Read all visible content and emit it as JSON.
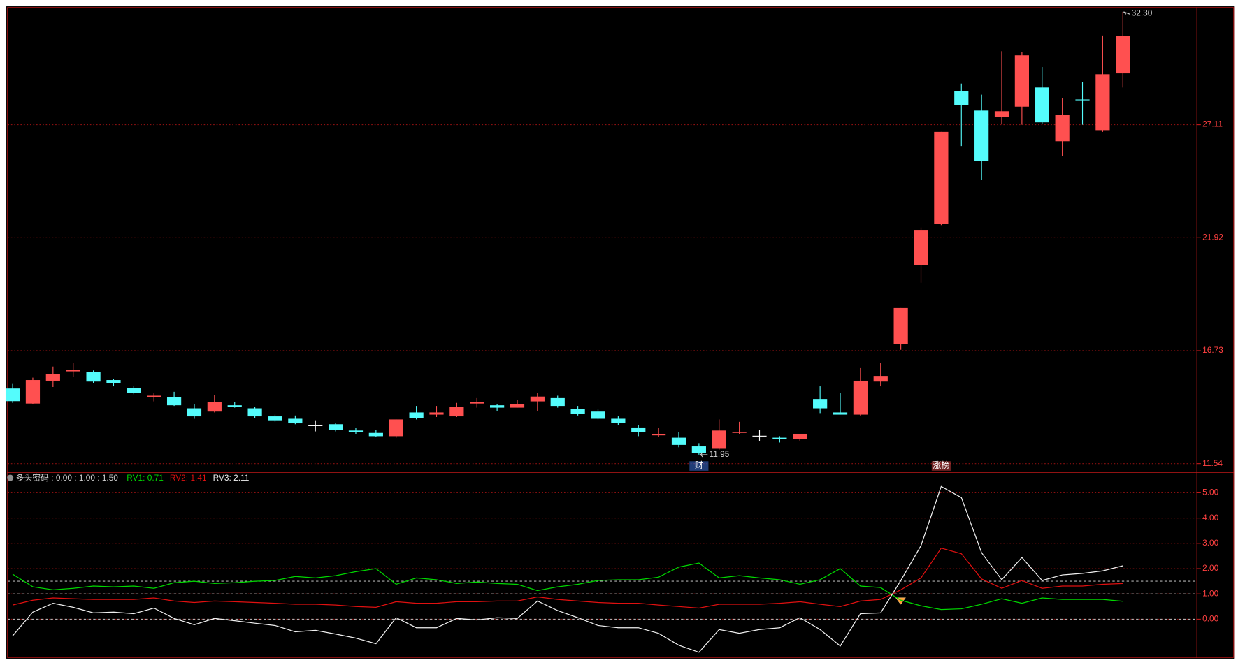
{
  "chart_data": [
    {
      "type": "candlestick",
      "open": [
        14.99,
        14.3,
        15.35,
        15.78,
        15.75,
        15.38,
        15.02,
        14.58,
        14.58,
        14.08,
        13.93,
        14.22,
        14.08,
        13.71,
        13.6,
        13.3,
        13.35,
        13.06,
        12.95,
        12.8,
        13.89,
        13.79,
        13.71,
        14.3,
        14.22,
        14.11,
        14.4,
        14.55,
        14.04,
        13.93,
        13.6,
        13.2,
        12.84,
        12.73,
        12.33,
        12.22,
        12.95,
        12.82,
        12.73,
        12.66,
        14.51,
        13.89,
        13.79,
        15.31,
        17.02,
        20.65,
        22.54,
        28.67,
        27.76,
        27.47,
        27.94,
        28.82,
        26.35,
        28.27,
        26.86,
        29.47
      ],
      "high": [
        15.2,
        15.49,
        16.0,
        16.18,
        15.82,
        15.42,
        15.09,
        14.77,
        14.84,
        14.26,
        14.69,
        14.37,
        14.15,
        13.79,
        13.75,
        13.53,
        13.39,
        13.17,
        13.1,
        13.57,
        14.19,
        14.19,
        14.33,
        14.55,
        14.26,
        14.48,
        14.77,
        14.66,
        14.19,
        14.04,
        13.71,
        13.31,
        13.17,
        12.99,
        12.48,
        13.57,
        13.46,
        13.1,
        12.8,
        12.91,
        15.09,
        14.8,
        15.93,
        16.18,
        18.69,
        22.39,
        26.78,
        29.0,
        28.49,
        30.49,
        30.45,
        29.76,
        28.34,
        29.07,
        31.21,
        32.3
      ],
      "low": [
        14.33,
        14.26,
        15.06,
        15.53,
        15.24,
        15.09,
        14.73,
        14.4,
        14.19,
        13.6,
        13.89,
        14.11,
        13.64,
        13.46,
        13.35,
        13.02,
        13.02,
        12.88,
        12.77,
        12.73,
        13.57,
        13.68,
        13.68,
        14.11,
        13.97,
        14.11,
        13.97,
        14.11,
        13.75,
        13.57,
        13.31,
        12.8,
        12.77,
        12.29,
        11.95,
        12.18,
        12.88,
        12.59,
        12.51,
        12.59,
        13.86,
        13.79,
        13.75,
        15.09,
        16.77,
        19.85,
        22.5,
        26.13,
        24.57,
        27.15,
        27.11,
        27.15,
        25.66,
        27.11,
        26.78,
        28.82
      ],
      "close": [
        14.41,
        15.38,
        15.67,
        15.86,
        15.31,
        15.24,
        14.8,
        14.66,
        14.22,
        13.71,
        14.37,
        14.15,
        13.71,
        13.53,
        13.39,
        13.3,
        13.1,
        12.99,
        12.8,
        13.57,
        13.64,
        13.89,
        14.15,
        14.37,
        14.11,
        14.26,
        14.62,
        14.19,
        13.82,
        13.6,
        13.42,
        12.99,
        12.88,
        12.4,
        12.04,
        13.06,
        12.99,
        12.82,
        12.66,
        12.91,
        14.08,
        13.79,
        15.35,
        15.57,
        18.69,
        22.28,
        26.78,
        28.02,
        25.44,
        27.73,
        30.3,
        27.22,
        27.55,
        28.24,
        29.43,
        31.18
      ],
      "up_color": "#ff5050",
      "down_color": "#54fcfc",
      "flat_color": "#ffffff",
      "ylim": [
        11.14,
        32.48
      ],
      "yticks": [
        11.54,
        16.73,
        21.92,
        27.11
      ],
      "grid": true,
      "max_label": {
        "value": 32.3,
        "label": "32.30"
      },
      "min_label": {
        "value": 11.95,
        "label": "11.95"
      },
      "events": [
        {
          "x": 34,
          "label": "财",
          "color": "#3a6fd8"
        },
        {
          "x": 46,
          "label": "涨榜",
          "color": "#c84040"
        }
      ]
    },
    {
      "type": "line",
      "title": "多头密码 : 0.00 : 1.00 : 1.50",
      "reference_lines": [
        0,
        1,
        1.5
      ],
      "ylim": [
        -1.5,
        5.81
      ],
      "yticks": [
        {
          "value": 0,
          "label": "0.00"
        },
        {
          "value": 1,
          "label": "1.00"
        },
        {
          "value": 2,
          "label": "2.00"
        },
        {
          "value": 3,
          "label": "3.00"
        },
        {
          "value": 4,
          "label": "4.00"
        },
        {
          "value": 5,
          "label": "5.00"
        }
      ],
      "grid": true,
      "series": [
        {
          "name": "RV1:",
          "color": "#00d800",
          "legend_value": {
            "value": 0.71,
            "label": "0.71"
          },
          "values": [
            1.78,
            1.28,
            1.16,
            1.22,
            1.31,
            1.28,
            1.31,
            1.22,
            1.44,
            1.5,
            1.41,
            1.44,
            1.5,
            1.53,
            1.69,
            1.63,
            1.72,
            1.88,
            2.0,
            1.38,
            1.63,
            1.56,
            1.41,
            1.47,
            1.41,
            1.38,
            1.13,
            1.28,
            1.38,
            1.53,
            1.56,
            1.56,
            1.66,
            2.06,
            2.22,
            1.63,
            1.72,
            1.63,
            1.56,
            1.38,
            1.56,
            2.0,
            1.31,
            1.25,
            0.75,
            0.53,
            0.38,
            0.41,
            0.59,
            0.81,
            0.63,
            0.84,
            0.78,
            0.78,
            0.78,
            0.71
          ]
        },
        {
          "name": "RV2:",
          "color": "#e01010",
          "legend_value": {
            "value": 1.41,
            "label": "1.41"
          },
          "values": [
            0.56,
            0.75,
            0.84,
            0.81,
            0.78,
            0.78,
            0.78,
            0.84,
            0.72,
            0.66,
            0.72,
            0.69,
            0.66,
            0.63,
            0.59,
            0.59,
            0.56,
            0.5,
            0.47,
            0.69,
            0.63,
            0.63,
            0.69,
            0.69,
            0.72,
            0.72,
            0.88,
            0.78,
            0.72,
            0.66,
            0.63,
            0.63,
            0.56,
            0.5,
            0.44,
            0.59,
            0.59,
            0.59,
            0.63,
            0.69,
            0.59,
            0.5,
            0.72,
            0.78,
            1.16,
            1.63,
            2.81,
            2.59,
            1.59,
            1.22,
            1.53,
            1.22,
            1.31,
            1.31,
            1.38,
            1.41
          ]
        },
        {
          "name": "RV3:",
          "color": "#f0f0f0",
          "legend_value": {
            "value": 2.11,
            "label": "2.11"
          },
          "values": [
            -0.66,
            0.28,
            0.63,
            0.47,
            0.25,
            0.28,
            0.22,
            0.44,
            0.03,
            -0.22,
            0.03,
            -0.06,
            -0.16,
            -0.25,
            -0.5,
            -0.44,
            -0.59,
            -0.75,
            -0.97,
            0.06,
            -0.34,
            -0.34,
            0.03,
            -0.03,
            0.06,
            0.03,
            0.72,
            0.34,
            0.06,
            -0.25,
            -0.34,
            -0.34,
            -0.56,
            -1.03,
            -1.31,
            -0.41,
            -0.56,
            -0.41,
            -0.34,
            0.06,
            -0.41,
            -1.06,
            0.22,
            0.25,
            1.53,
            2.91,
            5.25,
            4.81,
            2.63,
            1.56,
            2.44,
            1.53,
            1.75,
            1.81,
            1.91,
            2.11
          ]
        }
      ]
    }
  ]
}
